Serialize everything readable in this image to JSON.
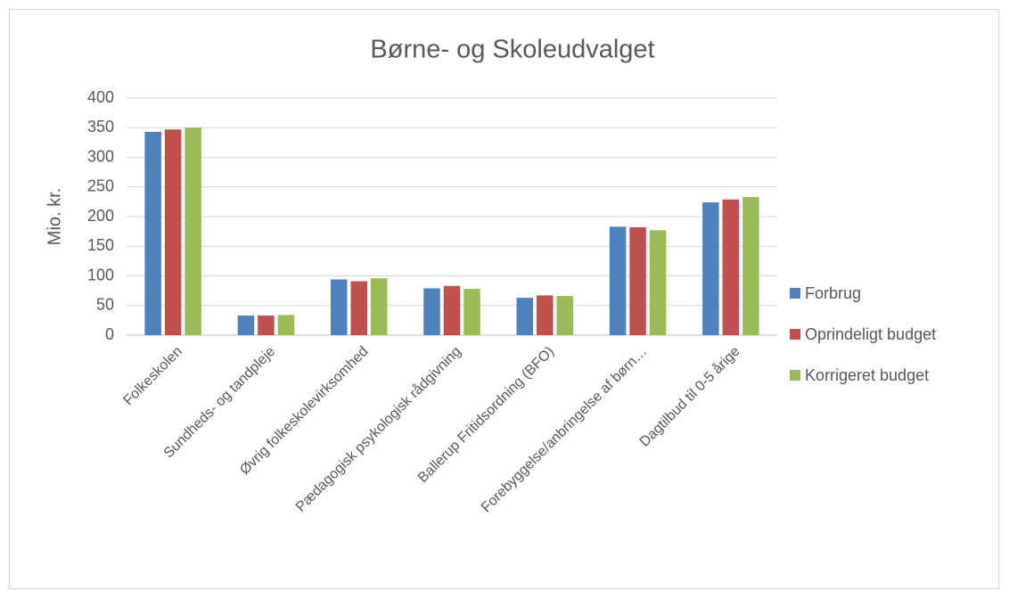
{
  "chart_data": {
    "type": "bar",
    "title": "Børne- og Skoleudvalget",
    "y_label": "Mio. kr.",
    "categories": [
      "Folkeskolen",
      "Sundheds- og tandpleje",
      "Øvrig folkeskolevirksomhed",
      "Pædagogisk psykologisk rådgivning",
      "Ballerup Fritidsordning (BFO)",
      "Forebyggelse/anbringelse af børn…",
      "Dagtilbud til 0-5 årige"
    ],
    "series": [
      {
        "name": "Forbrug",
        "color": "#4f81bd",
        "values": [
          343,
          33,
          94,
          79,
          63,
          183,
          224
        ]
      },
      {
        "name": "Oprindeligt budget",
        "color": "#c0504d",
        "values": [
          347,
          33,
          91,
          83,
          67,
          182,
          229
        ]
      },
      {
        "name": "Korrigeret budget",
        "color": "#9bbb59",
        "values": [
          350,
          34,
          96,
          78,
          66,
          177,
          233
        ]
      }
    ],
    "ylim": [
      0,
      400
    ],
    "yticks": [
      0,
      50,
      100,
      150,
      200,
      250,
      300,
      350,
      400
    ],
    "grid": true,
    "legend": "right"
  }
}
